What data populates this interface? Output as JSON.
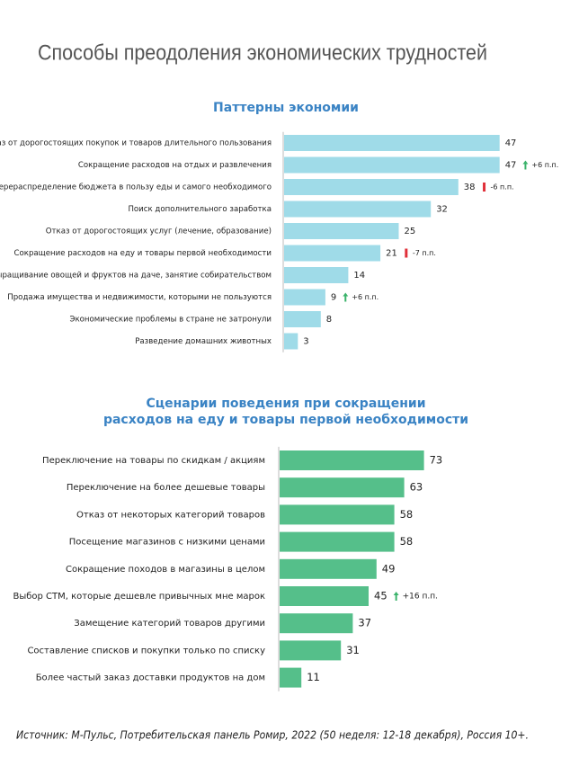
{
  "title": "Способы преодоления экономических трудностей",
  "source": "Источник: М-Пульс, Потребительская панель Ромир, 2022 (50 неделя: 12-18 декабря), Россия 10+.",
  "chart_data": [
    {
      "type": "bar",
      "orientation": "horizontal",
      "title": [
        "Паттерны экономии"
      ],
      "color": "#9fdbe8",
      "categories": [
        "Отказ от дорогостоящих покупок и товаров длительного пользования",
        "Сокращение расходов на отдых и развлечения",
        "Перераспределение бюджета в пользу еды и самого необходимого",
        "Поиск дополнительного заработка",
        "Отказ от дорогостоящих услуг (лечение, образование)",
        "Сокращение расходов на еду и товары первой необходимости",
        "Выращивание овощей и фруктов на даче, занятие собирательством",
        "Продажа имущества и недвижимости, которыми не пользуются",
        "Экономические проблемы в стране не затронули",
        "Разведение домашних животных"
      ],
      "values": [
        47,
        47,
        38,
        32,
        25,
        21,
        14,
        9,
        8,
        3
      ],
      "changes": [
        null,
        "+6 п.п.",
        "-6 п.п.",
        null,
        null,
        "-7 п.п.",
        null,
        "+6 п.п.",
        null,
        null
      ]
    },
    {
      "type": "bar",
      "orientation": "horizontal",
      "title": [
        "Сценарии поведения при сокращении",
        "расходов на еду и товары первой необходимости"
      ],
      "color": "#55bf8a",
      "categories": [
        "Переключение на товары по скидкам / акциям",
        "Переключение на более дешевые товары",
        "Отказ от некоторых категорий товаров",
        "Посещение магазинов с низкими ценами",
        "Сокращение походов в магазины в целом",
        "Выбор СТМ, которые дешевле привычных мне марок",
        "Замещение категорий товаров другими",
        "Составление списков и покупки только по списку",
        "Более частый заказ доставки продуктов на дом"
      ],
      "values": [
        73,
        63,
        58,
        58,
        49,
        45,
        37,
        31,
        11
      ],
      "changes": [
        null,
        null,
        null,
        null,
        null,
        "+16 п.п.",
        null,
        null,
        null
      ]
    }
  ]
}
